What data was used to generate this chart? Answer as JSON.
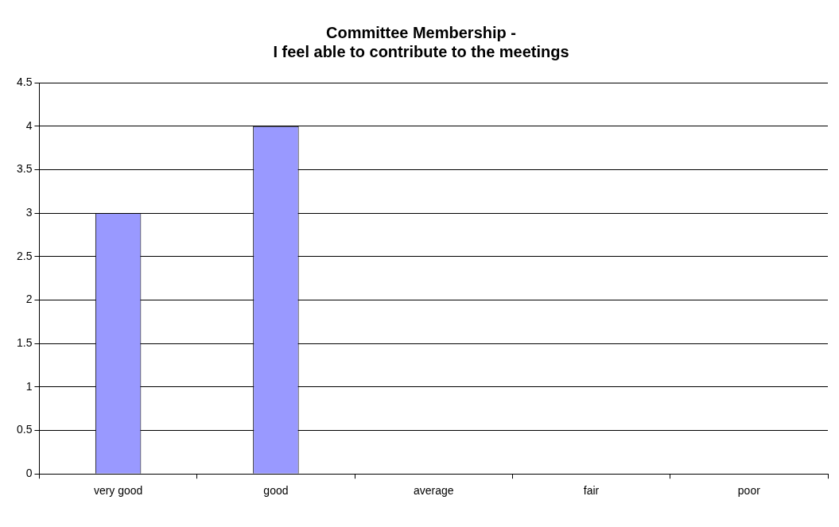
{
  "chart_data": {
    "type": "bar",
    "title": "Committee Membership -\nI feel able to contribute to the meetings",
    "categories": [
      "very good",
      "good",
      "average",
      "fair",
      "poor"
    ],
    "values": [
      3,
      4,
      0,
      0,
      0
    ],
    "color": "#9999ff",
    "ylim": [
      0,
      4.5
    ],
    "yticks": [
      0,
      0.5,
      1,
      1.5,
      2,
      2.5,
      3,
      3.5,
      4,
      4.5
    ],
    "grid": "y",
    "legend": false
  }
}
